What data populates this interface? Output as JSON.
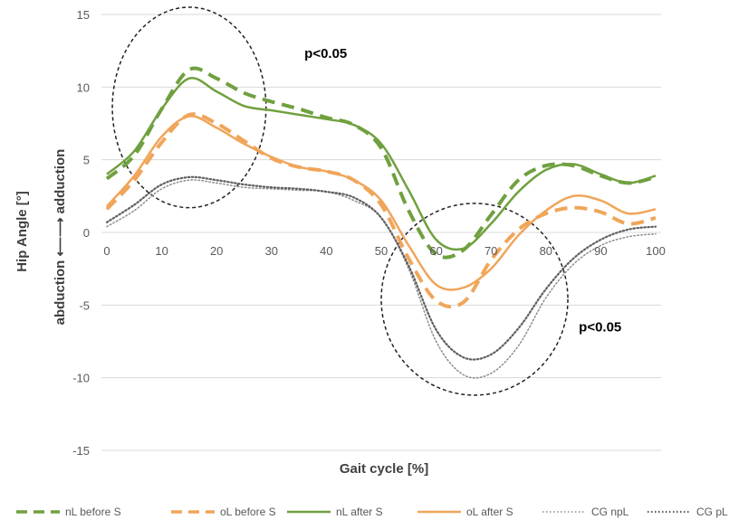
{
  "chart_data": {
    "type": "line",
    "xlabel": "Gait cycle [%]",
    "ylabel": "Hip Angle [°]",
    "ylabel_sub": "abduction ⟵⟶ adduction",
    "xlim": [
      0,
      100
    ],
    "ylim": [
      -15,
      15
    ],
    "x_ticks": [
      "0",
      "10",
      "20",
      "30",
      "40",
      "50",
      "60",
      "70",
      "80",
      "90",
      "100"
    ],
    "y_ticks": [
      "15",
      "10",
      "5",
      "0",
      "-5",
      "-10",
      "-15"
    ],
    "grid": "horizontal",
    "legend_position": "bottom",
    "annotations": [
      {
        "text": "p<0.05",
        "x": 36,
        "y": 12.0
      },
      {
        "text": "p<0.05",
        "x": 86,
        "y": -6.8
      }
    ],
    "highlight_ellipses": [
      {
        "cx": 15,
        "cy": 8.6,
        "rx": 14,
        "ry": 6.9
      },
      {
        "cx": 67,
        "cy": -4.6,
        "rx": 17,
        "ry": 6.6
      }
    ],
    "x": [
      0,
      5,
      10,
      15,
      20,
      25,
      30,
      35,
      40,
      45,
      50,
      55,
      60,
      65,
      70,
      75,
      80,
      85,
      90,
      95,
      100
    ],
    "series": [
      {
        "name": "nL before S",
        "color": "#70a03f",
        "style": "dashed",
        "width": 4,
        "values": [
          3.7,
          5.3,
          8.5,
          11.2,
          10.6,
          9.6,
          9.0,
          8.5,
          7.9,
          7.4,
          5.8,
          1.5,
          -1.5,
          -1.2,
          1.2,
          3.6,
          4.6,
          4.6,
          3.9,
          3.4,
          3.8
        ]
      },
      {
        "name": "oL before S",
        "color": "#f0a55a",
        "style": "dashed",
        "width": 4,
        "values": [
          1.6,
          3.6,
          6.2,
          8.1,
          7.5,
          6.3,
          5.1,
          4.5,
          4.2,
          3.6,
          1.9,
          -1.8,
          -4.7,
          -4.8,
          -1.9,
          0.2,
          1.3,
          1.7,
          1.4,
          0.6,
          1.0
        ]
      },
      {
        "name": "nL after S",
        "color": "#70a03f",
        "style": "solid",
        "width": 2.5,
        "values": [
          4.0,
          5.6,
          8.5,
          10.6,
          9.7,
          8.7,
          8.4,
          8.1,
          7.8,
          7.4,
          6.1,
          2.9,
          -0.5,
          -1.1,
          0.6,
          2.8,
          4.3,
          4.7,
          4.0,
          3.4,
          3.9
        ]
      },
      {
        "name": "oL after S",
        "color": "#f0a55a",
        "style": "solid",
        "width": 2.5,
        "values": [
          1.8,
          3.9,
          6.6,
          8.0,
          7.2,
          6.1,
          5.2,
          4.5,
          4.2,
          3.6,
          2.2,
          -0.9,
          -3.6,
          -3.8,
          -2.5,
          -0.2,
          1.5,
          2.5,
          2.2,
          1.3,
          1.6
        ]
      },
      {
        "name": "CG npL",
        "color": "#8c8c8c",
        "style": "dotted",
        "width": 1.5,
        "values": [
          0.4,
          1.5,
          3.0,
          3.6,
          3.4,
          3.1,
          3.0,
          2.9,
          2.8,
          2.2,
          1.0,
          -2.5,
          -7.5,
          -9.8,
          -9.7,
          -7.8,
          -4.5,
          -2.2,
          -0.9,
          -0.3,
          -0.1
        ]
      },
      {
        "name": "CG pL",
        "color": "#5f5f5f",
        "style": "dotted",
        "width": 2.2,
        "values": [
          0.7,
          1.9,
          3.3,
          3.8,
          3.6,
          3.3,
          3.1,
          3.0,
          2.8,
          2.4,
          1.0,
          -2.3,
          -6.7,
          -8.6,
          -8.4,
          -6.6,
          -3.9,
          -1.8,
          -0.5,
          0.2,
          0.4
        ]
      }
    ]
  }
}
